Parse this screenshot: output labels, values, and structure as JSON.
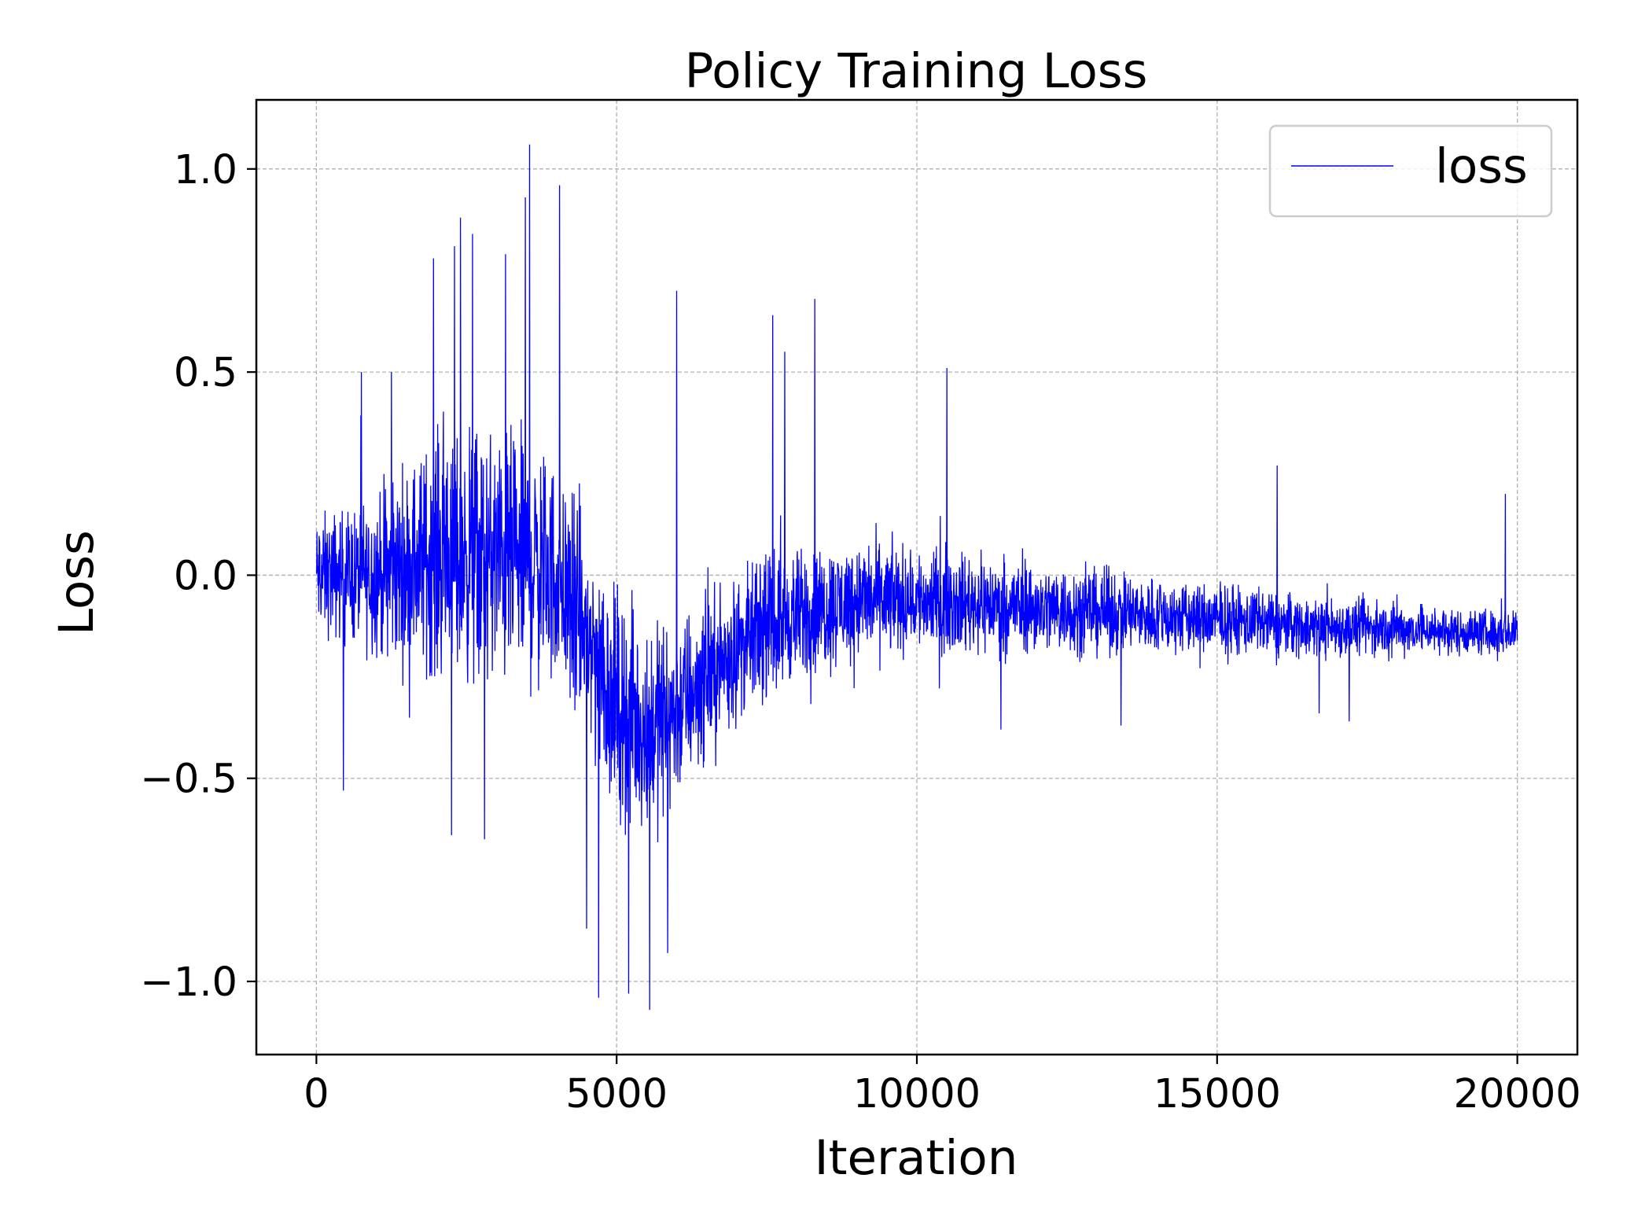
{
  "chart_data": {
    "type": "line",
    "title": "Policy Training Loss",
    "xlabel": "Iteration",
    "ylabel": "Loss",
    "xlim": [
      -1000,
      21000
    ],
    "ylim": [
      -1.18,
      1.17
    ],
    "xticks": [
      0,
      5000,
      10000,
      15000,
      20000
    ],
    "yticks": [
      -1.0,
      -0.5,
      0.0,
      0.5,
      1.0
    ],
    "xtick_labels": [
      "0",
      "5000",
      "10000",
      "15000",
      "20000"
    ],
    "ytick_labels": [
      "−1.0",
      "−0.5",
      "0.0",
      "0.5",
      "1.0"
    ],
    "grid": true,
    "legend_position": "top-right",
    "series": [
      {
        "name": "loss",
        "color": "#0000ff",
        "x_range": [
          0,
          20000
        ],
        "envelope": {
          "x": [
            0,
            500,
            1000,
            1500,
            2000,
            2500,
            3000,
            3500,
            4000,
            4500,
            5000,
            5500,
            6000,
            6500,
            7000,
            7500,
            8000,
            9000,
            10000,
            11000,
            12000,
            13000,
            14000,
            15000,
            16000,
            17000,
            18000,
            19000,
            20000
          ],
          "mean": [
            0.0,
            0.0,
            0.0,
            0.02,
            0.05,
            0.05,
            0.04,
            0.03,
            0.0,
            -0.15,
            -0.32,
            -0.38,
            -0.33,
            -0.25,
            -0.18,
            -0.13,
            -0.1,
            -0.06,
            -0.06,
            -0.07,
            -0.08,
            -0.09,
            -0.1,
            -0.11,
            -0.12,
            -0.13,
            -0.13,
            -0.14,
            -0.14
          ],
          "spread": [
            0.18,
            0.2,
            0.24,
            0.3,
            0.36,
            0.38,
            0.38,
            0.38,
            0.34,
            0.34,
            0.34,
            0.32,
            0.28,
            0.24,
            0.22,
            0.2,
            0.2,
            0.18,
            0.16,
            0.15,
            0.14,
            0.13,
            0.12,
            0.11,
            0.1,
            0.09,
            0.08,
            0.07,
            0.07
          ]
        },
        "spikes": [
          {
            "x": 3550,
            "y": 1.06
          },
          {
            "x": 3480,
            "y": 0.93
          },
          {
            "x": 4050,
            "y": 0.96
          },
          {
            "x": 2400,
            "y": 0.88
          },
          {
            "x": 2600,
            "y": 0.84
          },
          {
            "x": 3150,
            "y": 0.79
          },
          {
            "x": 1950,
            "y": 0.78
          },
          {
            "x": 2300,
            "y": 0.81
          },
          {
            "x": 6000,
            "y": 0.7
          },
          {
            "x": 8300,
            "y": 0.68
          },
          {
            "x": 7600,
            "y": 0.64
          },
          {
            "x": 7800,
            "y": 0.55
          },
          {
            "x": 10500,
            "y": 0.51
          },
          {
            "x": 750,
            "y": 0.5
          },
          {
            "x": 1250,
            "y": 0.5
          },
          {
            "x": 16000,
            "y": 0.27
          },
          {
            "x": 19800,
            "y": 0.2
          },
          {
            "x": 4700,
            "y": -1.04
          },
          {
            "x": 5550,
            "y": -1.07
          },
          {
            "x": 5200,
            "y": -1.03
          },
          {
            "x": 5850,
            "y": -0.93
          },
          {
            "x": 4500,
            "y": -0.87
          },
          {
            "x": 2250,
            "y": -0.64
          },
          {
            "x": 2800,
            "y": -0.65
          },
          {
            "x": 450,
            "y": -0.53
          },
          {
            "x": 11400,
            "y": -0.38
          },
          {
            "x": 13400,
            "y": -0.37
          },
          {
            "x": 16700,
            "y": -0.34
          },
          {
            "x": 17200,
            "y": -0.36
          }
        ]
      }
    ]
  }
}
